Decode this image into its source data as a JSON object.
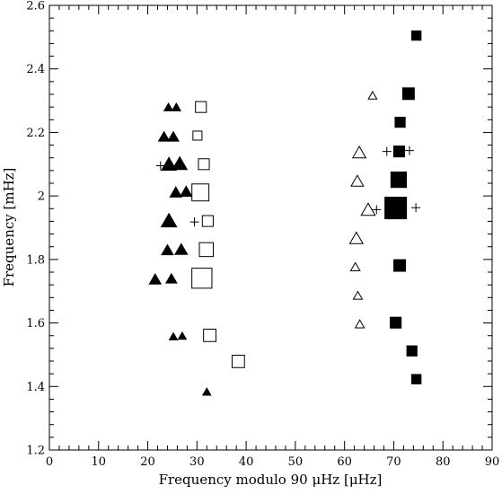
{
  "chart_data": {
    "type": "scatter",
    "xlabel": "Frequency modulo 90 μHz [μHz]",
    "ylabel": "Frequency [mHz]",
    "xlim": [
      0,
      90
    ],
    "ylim": [
      1.2,
      2.6
    ],
    "xticks": [
      0,
      10,
      20,
      30,
      40,
      50,
      60,
      70,
      80,
      90
    ],
    "yticks": [
      1.2,
      1.4,
      1.6,
      1.8,
      2,
      2.2,
      2.4,
      2.6
    ],
    "ytick_labels": [
      "1.2",
      "1.4",
      "1.6",
      "1.8",
      "2",
      "2.2",
      "2.4",
      "2.6"
    ],
    "grid": false,
    "legend": "none",
    "marker_size_encodes": "relative amplitude (unitless, 0-1)",
    "series": [
      {
        "marker": "filled-triangle",
        "points": [
          {
            "x": 24.2,
            "y": 2.278,
            "s": 0.15
          },
          {
            "x": 25.8,
            "y": 2.278,
            "s": 0.15
          },
          {
            "x": 23.3,
            "y": 2.185,
            "s": 0.3
          },
          {
            "x": 25.2,
            "y": 2.185,
            "s": 0.3
          },
          {
            "x": 24.3,
            "y": 2.098,
            "s": 0.55
          },
          {
            "x": 26.5,
            "y": 2.1,
            "s": 0.55
          },
          {
            "x": 25.7,
            "y": 2.01,
            "s": 0.35
          },
          {
            "x": 27.8,
            "y": 2.012,
            "s": 0.35
          },
          {
            "x": 24.3,
            "y": 1.92,
            "s": 0.6
          },
          {
            "x": 24.0,
            "y": 1.828,
            "s": 0.35
          },
          {
            "x": 26.8,
            "y": 1.83,
            "s": 0.4
          },
          {
            "x": 21.5,
            "y": 1.736,
            "s": 0.35
          },
          {
            "x": 24.8,
            "y": 1.738,
            "s": 0.3
          },
          {
            "x": 25.2,
            "y": 1.556,
            "s": 0.12
          },
          {
            "x": 27.0,
            "y": 1.558,
            "s": 0.12
          },
          {
            "x": 32.0,
            "y": 1.382,
            "s": 0.12
          }
        ]
      },
      {
        "marker": "open-square",
        "points": [
          {
            "x": 30.8,
            "y": 2.28,
            "s": 0.3
          },
          {
            "x": 30.1,
            "y": 2.19,
            "s": 0.18
          },
          {
            "x": 31.4,
            "y": 2.1,
            "s": 0.3
          },
          {
            "x": 30.7,
            "y": 2.011,
            "s": 0.7
          },
          {
            "x": 32.2,
            "y": 1.921,
            "s": 0.3
          },
          {
            "x": 31.9,
            "y": 1.831,
            "s": 0.5
          },
          {
            "x": 31.0,
            "y": 1.741,
            "s": 0.9
          },
          {
            "x": 32.6,
            "y": 1.561,
            "s": 0.4
          },
          {
            "x": 38.4,
            "y": 1.479,
            "s": 0.4
          }
        ]
      },
      {
        "marker": "open-triangle",
        "points": [
          {
            "x": 65.7,
            "y": 2.315,
            "s": 0.15
          },
          {
            "x": 63.0,
            "y": 2.135,
            "s": 0.45
          },
          {
            "x": 62.6,
            "y": 2.045,
            "s": 0.4
          },
          {
            "x": 64.8,
            "y": 1.955,
            "s": 0.5
          },
          {
            "x": 62.4,
            "y": 1.865,
            "s": 0.45
          },
          {
            "x": 62.2,
            "y": 1.775,
            "s": 0.2
          },
          {
            "x": 62.7,
            "y": 1.685,
            "s": 0.18
          },
          {
            "x": 63.1,
            "y": 1.595,
            "s": 0.18
          }
        ]
      },
      {
        "marker": "filled-square",
        "points": [
          {
            "x": 74.6,
            "y": 2.505,
            "s": 0.2
          },
          {
            "x": 73.0,
            "y": 2.322,
            "s": 0.35
          },
          {
            "x": 71.3,
            "y": 2.232,
            "s": 0.25
          },
          {
            "x": 71.1,
            "y": 2.14,
            "s": 0.3
          },
          {
            "x": 71.0,
            "y": 2.051,
            "s": 0.6
          },
          {
            "x": 70.4,
            "y": 1.962,
            "s": 1.0
          },
          {
            "x": 71.2,
            "y": 1.781,
            "s": 0.35
          },
          {
            "x": 70.4,
            "y": 1.601,
            "s": 0.3
          },
          {
            "x": 73.7,
            "y": 1.512,
            "s": 0.25
          },
          {
            "x": 74.6,
            "y": 1.423,
            "s": 0.2
          }
        ]
      },
      {
        "marker": "plus",
        "points": [
          {
            "x": 22.6,
            "y": 2.095
          },
          {
            "x": 29.5,
            "y": 1.918
          },
          {
            "x": 68.6,
            "y": 2.14
          },
          {
            "x": 73.2,
            "y": 2.143
          },
          {
            "x": 66.5,
            "y": 1.957
          },
          {
            "x": 74.5,
            "y": 1.963
          }
        ]
      }
    ]
  }
}
